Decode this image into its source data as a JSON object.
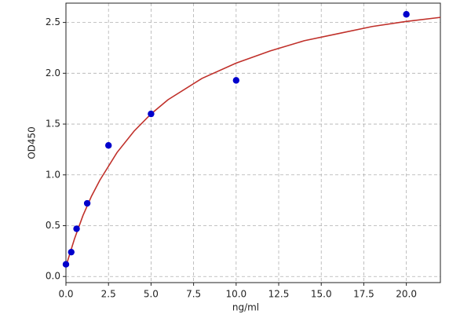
{
  "chart_data": {
    "type": "scatter",
    "xlabel": "ng/ml",
    "ylabel": "OD450",
    "xlim": [
      0,
      22
    ],
    "ylim": [
      -0.06,
      2.69
    ],
    "xticks": [
      {
        "value": 0,
        "label": "0.0"
      },
      2.5,
      {
        "value": 5,
        "label": "5.0"
      },
      7.5,
      {
        "value": 10,
        "label": "10.0"
      },
      12.5,
      {
        "value": 15,
        "label": "15.0"
      },
      17.5,
      {
        "value": 20,
        "label": "20.0"
      }
    ],
    "yticks": [
      {
        "value": 0,
        "label": "0.0"
      },
      0.5,
      {
        "value": 1,
        "label": "1.0"
      },
      1.5,
      {
        "value": 2,
        "label": "2.0"
      },
      2.5
    ],
    "grid": true,
    "series": [
      {
        "kind": "points",
        "color": "#0000cc",
        "x": [
          0,
          0.3125,
          0.625,
          1.25,
          2.5,
          5,
          10,
          20
        ],
        "values": [
          0.12,
          0.24,
          0.47,
          0.72,
          1.29,
          1.6,
          1.93,
          2.58
        ]
      },
      {
        "kind": "curve",
        "color": "#c0302a",
        "x": [
          0,
          0.5,
          1,
          1.5,
          2,
          3,
          4,
          5,
          6,
          8,
          10,
          12,
          14,
          16,
          18,
          20,
          22
        ],
        "values": [
          0.1,
          0.37,
          0.6,
          0.79,
          0.95,
          1.22,
          1.43,
          1.6,
          1.74,
          1.95,
          2.1,
          2.22,
          2.32,
          2.39,
          2.46,
          2.51,
          2.55
        ]
      }
    ]
  }
}
